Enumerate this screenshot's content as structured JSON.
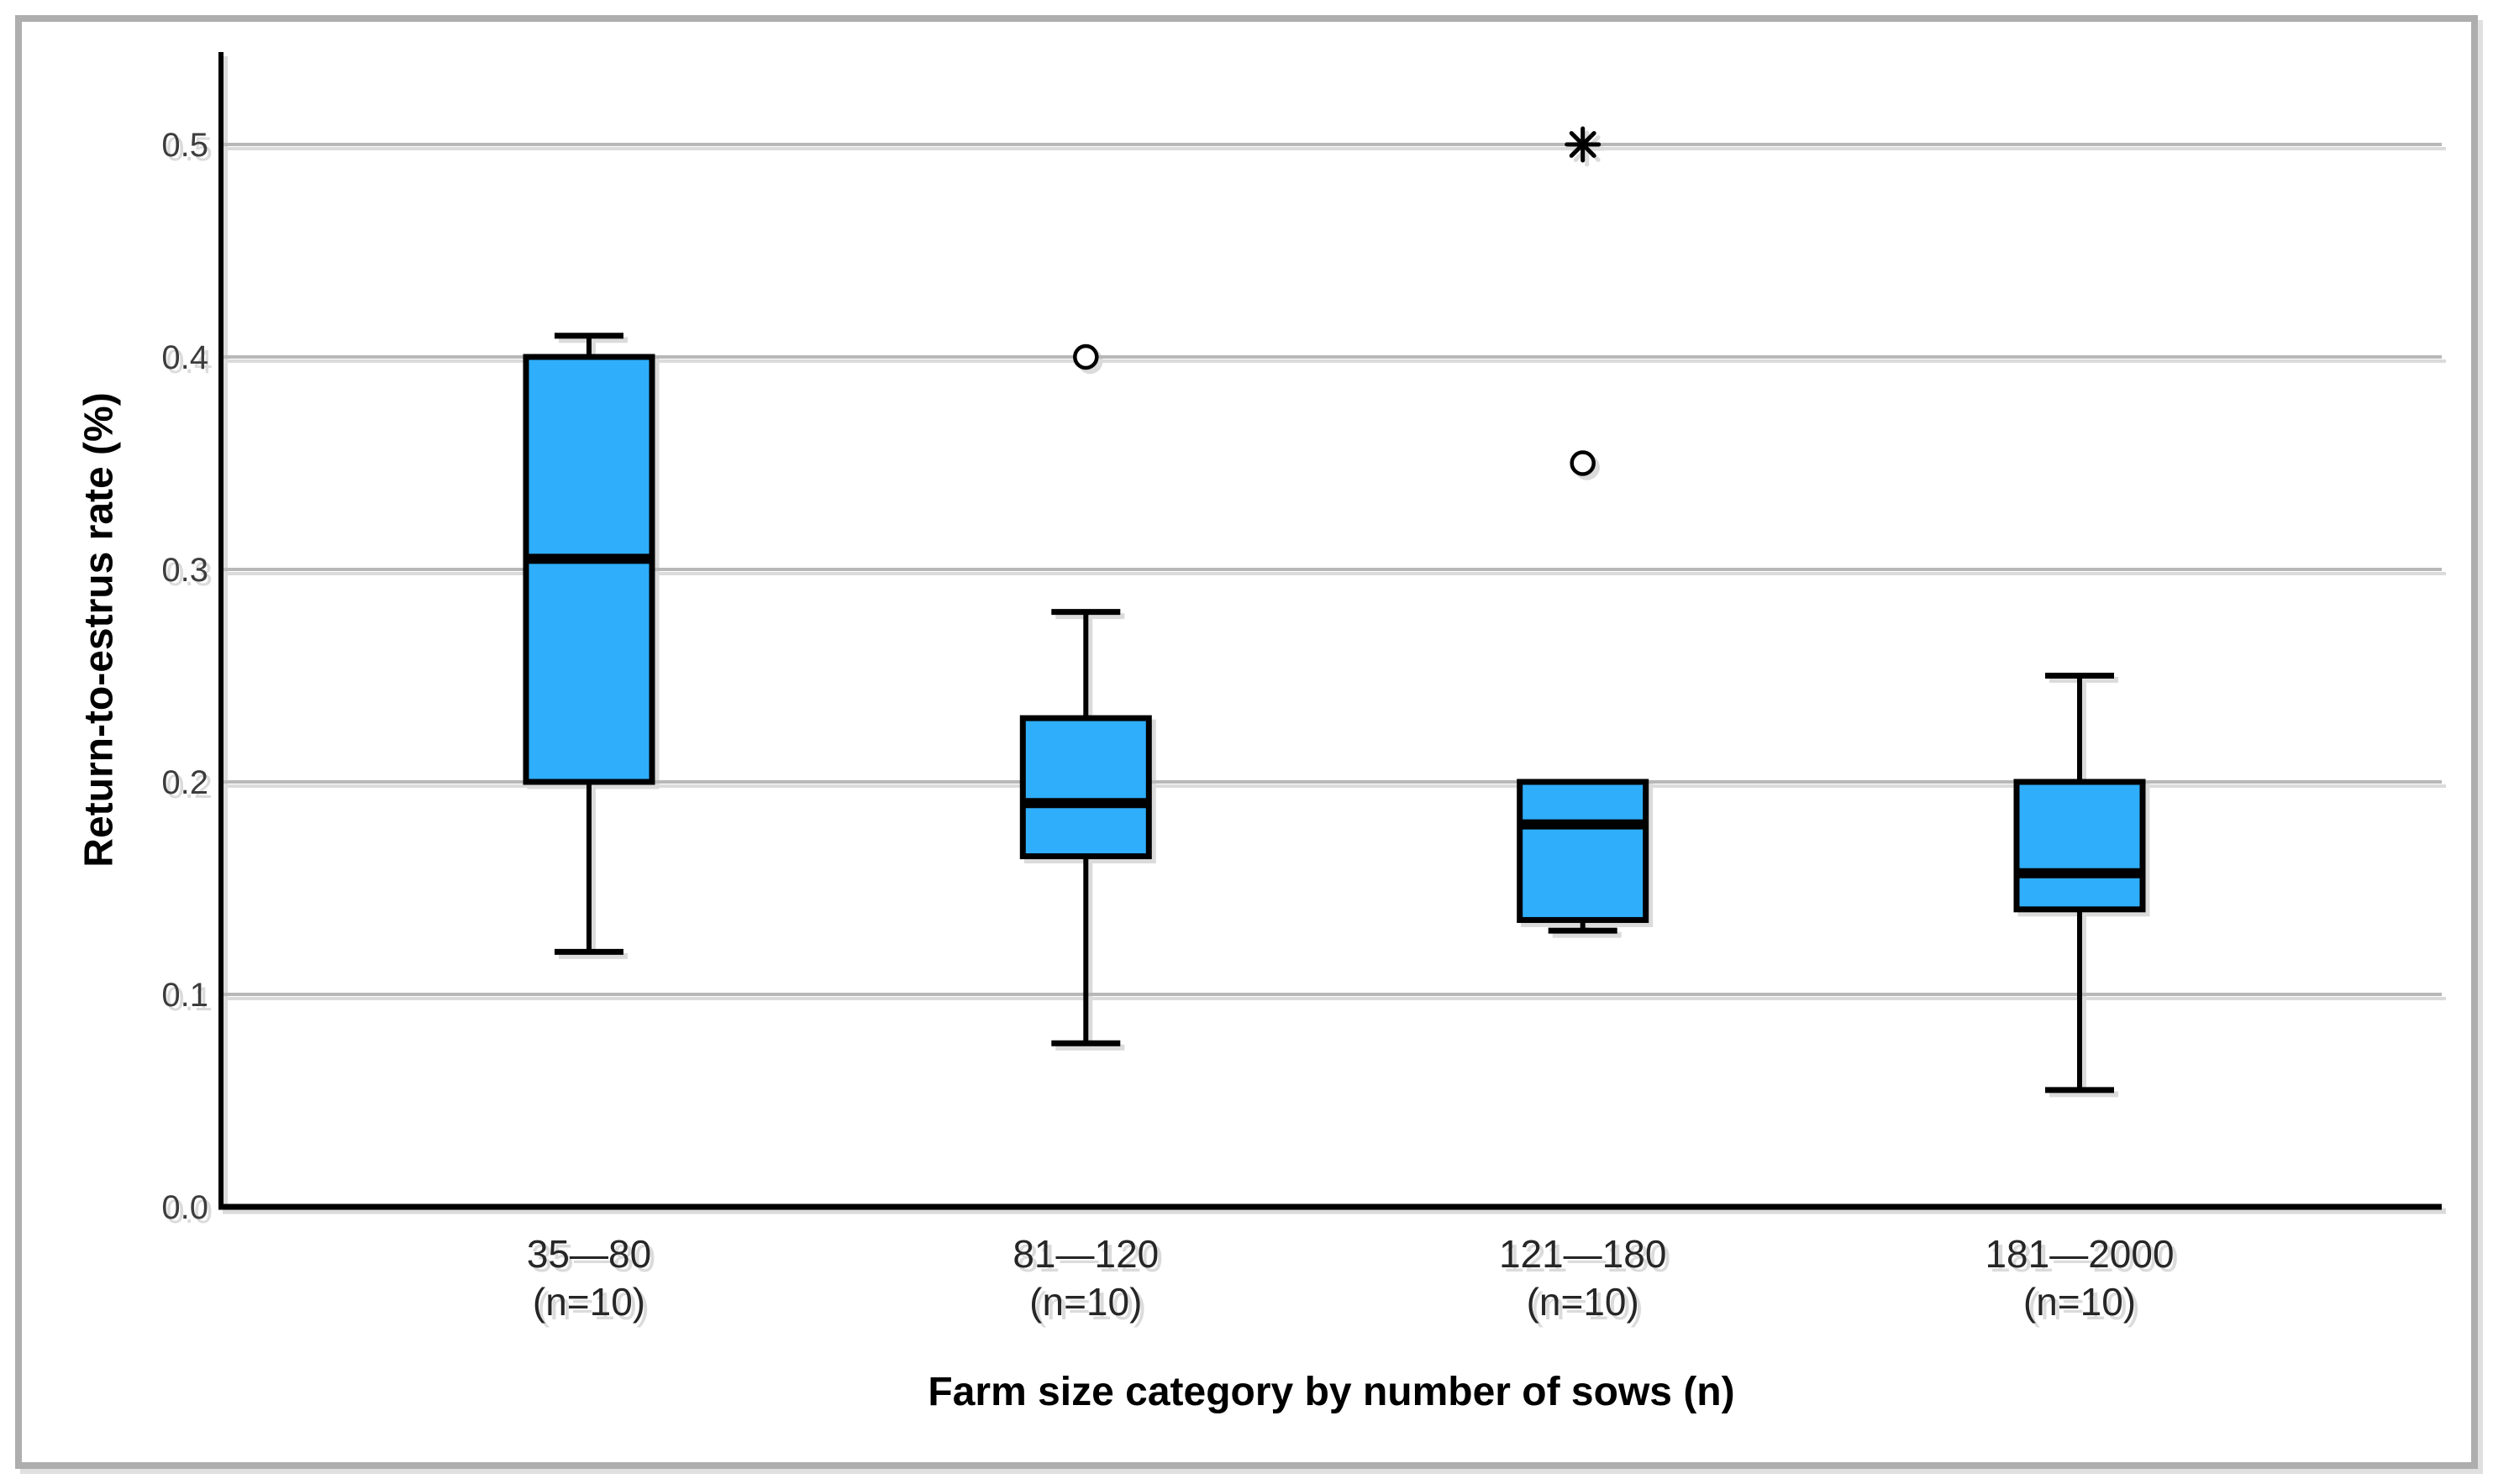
{
  "chart_data": {
    "type": "boxplot",
    "title": "",
    "ylabel": "Return-to-estrus rate (%)",
    "xlabel": "Farm size category by number of sows (n)",
    "y_ticks": [
      "0.0",
      "0.1",
      "0.2",
      "0.3",
      "0.4",
      "0.5"
    ],
    "y_tick_values": [
      0.0,
      0.1,
      0.2,
      0.3,
      0.4,
      0.5
    ],
    "ylim": [
      0,
      0.543
    ],
    "grid": "horizontal-gridlines-at-ticks",
    "legend": "none",
    "colors": {
      "box_fill": "#2FAEFB",
      "line": "#000000",
      "gridline": "#b8b8b8",
      "tick_text": "#3d3d3d",
      "category_text": "#262626",
      "frame_border": "#aeaeae"
    },
    "categories": [
      {
        "label": "35—80",
        "sub": "(n=10)",
        "whisker_low": 0.12,
        "q1": 0.2,
        "median": 0.305,
        "q3": 0.4,
        "whisker_high": 0.41,
        "outliers": []
      },
      {
        "label": "81—120",
        "sub": "(n=10)",
        "whisker_low": 0.077,
        "q1": 0.165,
        "median": 0.19,
        "q3": 0.23,
        "whisker_high": 0.28,
        "outliers": [
          {
            "marker": "circle",
            "value": 0.4
          }
        ]
      },
      {
        "label": "121—180",
        "sub": "(n=10)",
        "whisker_low": 0.13,
        "q1": 0.135,
        "median": 0.18,
        "q3": 0.2,
        "whisker_high": null,
        "outliers": [
          {
            "marker": "circle",
            "value": 0.35
          },
          {
            "marker": "star",
            "value": 0.5
          }
        ]
      },
      {
        "label": "181—2000",
        "sub": "(n=10)",
        "whisker_low": 0.055,
        "q1": 0.14,
        "median": 0.157,
        "q3": 0.2,
        "whisker_high": 0.25,
        "outliers": []
      }
    ]
  }
}
